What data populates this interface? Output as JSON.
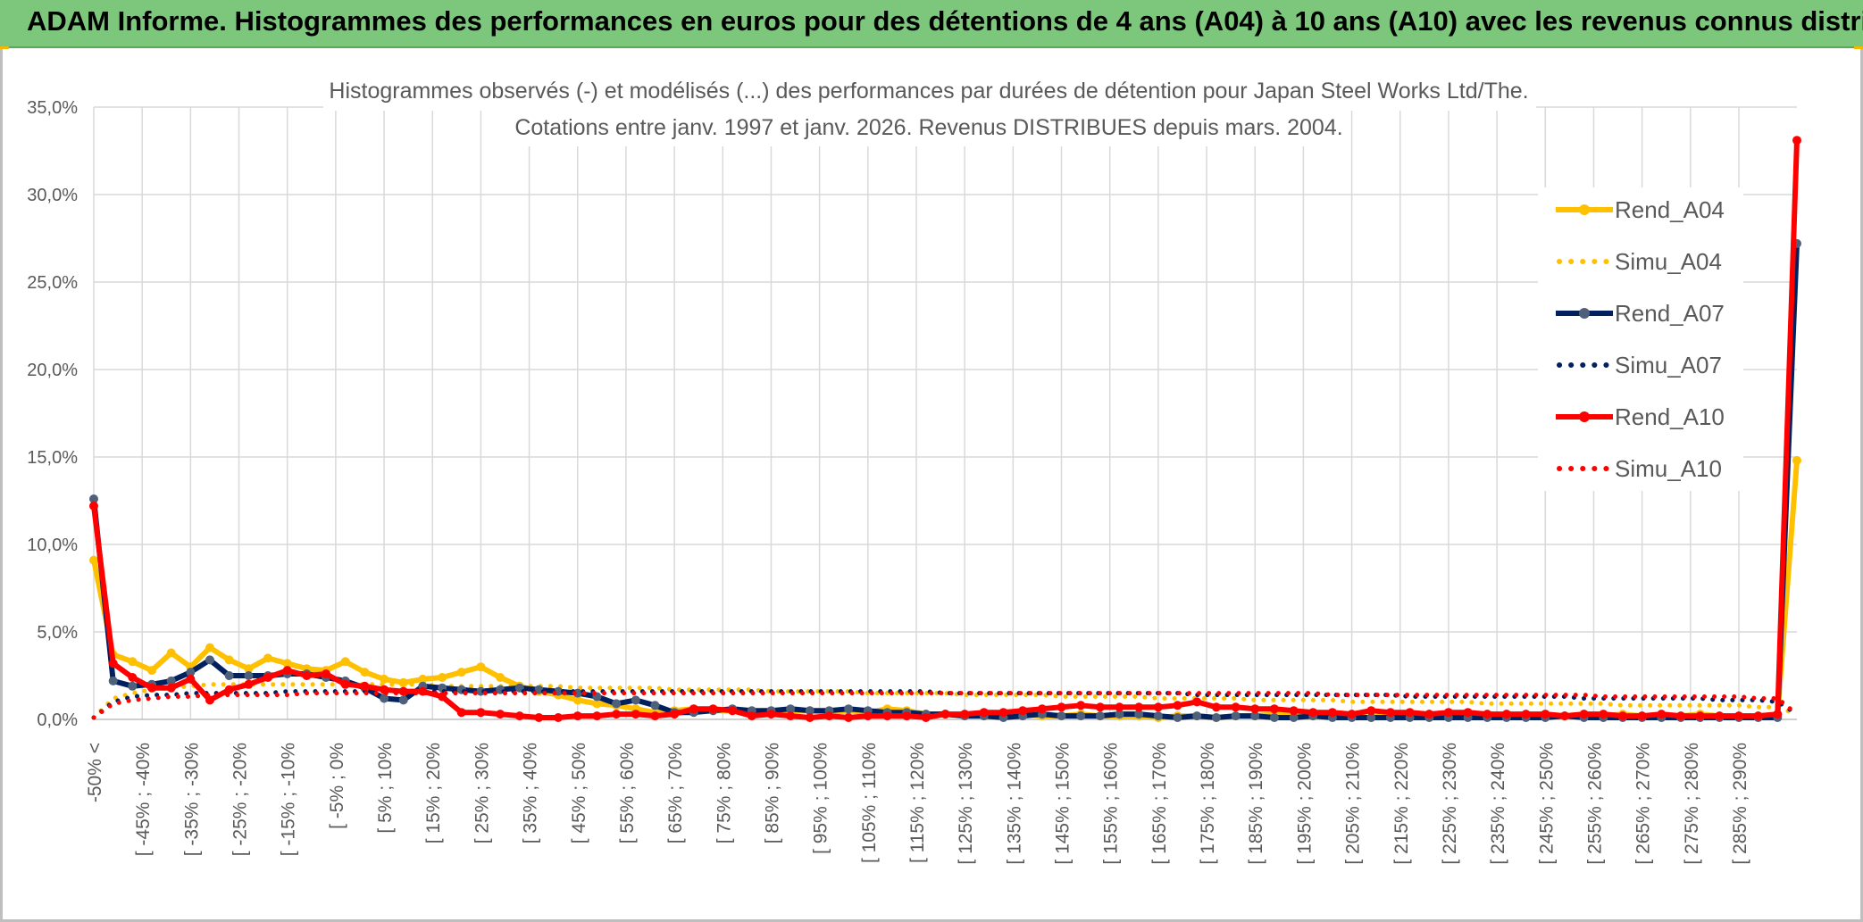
{
  "banner": {
    "title": "ADAM Informe. Histogrammes des performances en euros pour des détentions de 4 ans (A04) à 10 ans (A10) avec les revenus connus distribués"
  },
  "chart_data": {
    "type": "line",
    "title": "Histogrammes observés (-) et modélisés (...) des performances par durées de détention pour Japan Steel Works Ltd/The.",
    "subtitle": "Cotations entre janv. 1997 et janv. 2026.  Revenus DISTRIBUES depuis mars. 2004.",
    "xlabel": "",
    "ylabel": "",
    "ylim": [
      0,
      35
    ],
    "y_ticks": [
      "0,0%",
      "5,0%",
      "10,0%",
      "15,0%",
      "20,0%",
      "25,0%",
      "30,0%",
      "35,0%"
    ],
    "grid": true,
    "legend_position": "right",
    "x_tick_labels": [
      "-50% <",
      "[ -45% ; -40%",
      "[ -35% ; -30%",
      "[ -25% ; -20%",
      "[ -15% ; -10%",
      "[ -5% ; 0%",
      "[ 5% ; 10%",
      "[ 15% ; 20%",
      "[ 25% ; 30%",
      "[ 35% ; 40%",
      "[ 45% ; 50%",
      "[ 55% ; 60%",
      "[ 65% ; 70%",
      "[ 75% ; 80%",
      "[ 85% ; 90%",
      "[ 95% ; 100%",
      "[ 105% ; 110%",
      "[ 115% ; 120%",
      "[ 125% ; 130%",
      "[ 135% ; 140%",
      "[ 145% ; 150%",
      "[ 155% ; 160%",
      "[ 165% ; 170%",
      "[ 175% ; 180%",
      "[ 185% ; 190%",
      "[ 195% ; 200%",
      "[ 205% ; 210%",
      "[ 215% ; 220%",
      "[ 225% ; 230%",
      "[ 235% ; 240%",
      "[ 245% ; 250%",
      "[ 255% ; 260%",
      "[ 265% ; 270%",
      "[ 275% ; 280%",
      "[ 285% ; 290%"
    ],
    "series": [
      {
        "name": "Rend_A04",
        "style": "solid",
        "color": "#ffc000",
        "values": [
          9.1,
          3.7,
          3.3,
          2.8,
          3.8,
          3.0,
          4.1,
          3.4,
          2.9,
          3.5,
          3.2,
          2.9,
          2.8,
          3.3,
          2.7,
          2.3,
          2.1,
          2.3,
          2.4,
          2.7,
          3.0,
          2.4,
          1.9,
          1.6,
          1.4,
          1.1,
          0.9,
          0.8,
          0.6,
          0.4,
          0.5,
          0.6,
          0.5,
          0.5,
          0.4,
          0.4,
          0.5,
          0.5,
          0.4,
          0.5,
          0.4,
          0.6,
          0.5,
          0.3,
          0.3,
          0.2,
          0.3,
          0.2,
          0.3,
          0.2,
          0.2,
          0.3,
          0.2,
          0.2,
          0.2,
          0.1,
          0.2,
          0.2,
          0.1,
          0.2,
          0.2,
          0.3,
          0.2,
          0.2,
          0.3,
          0.2,
          0.1,
          0.3,
          0.2,
          0.3,
          0.2,
          0.3,
          0.2,
          0.3,
          0.2,
          0.3,
          0.2,
          0.3,
          0.2,
          0.3,
          0.2,
          0.2,
          0.2,
          0.3,
          0.2,
          0.2,
          0.2,
          0.2,
          14.8
        ]
      },
      {
        "name": "Simu_A04",
        "style": "dotted",
        "color": "#ffc000",
        "values": [
          0.1,
          1.2,
          1.5,
          1.7,
          1.8,
          1.9,
          2.0,
          2.0,
          2.0,
          2.0,
          2.0,
          2.0,
          2.0,
          2.0,
          2.0,
          2.0,
          2.0,
          2.0,
          1.9,
          1.9,
          1.9,
          1.9,
          1.9,
          1.9,
          1.9,
          1.8,
          1.8,
          1.8,
          1.8,
          1.8,
          1.7,
          1.7,
          1.7,
          1.7,
          1.7,
          1.6,
          1.6,
          1.6,
          1.6,
          1.6,
          1.5,
          1.5,
          1.5,
          1.5,
          1.5,
          1.4,
          1.4,
          1.4,
          1.4,
          1.4,
          1.3,
          1.3,
          1.3,
          1.3,
          1.3,
          1.2,
          1.2,
          1.2,
          1.2,
          1.2,
          1.1,
          1.1,
          1.1,
          1.1,
          1.1,
          1.0,
          1.0,
          1.0,
          1.0,
          1.0,
          1.0,
          1.0,
          0.9,
          0.9,
          0.9,
          0.9,
          0.9,
          0.9,
          0.9,
          0.8,
          0.8,
          0.8,
          0.8,
          0.8,
          0.8,
          0.8,
          0.7,
          0.7,
          0.3
        ]
      },
      {
        "name": "Rend_A07",
        "style": "solid",
        "color": "#002060",
        "values": [
          12.6,
          2.2,
          1.9,
          2.0,
          2.2,
          2.7,
          3.4,
          2.5,
          2.5,
          2.5,
          2.6,
          2.6,
          2.4,
          2.2,
          1.8,
          1.2,
          1.1,
          1.9,
          1.8,
          1.7,
          1.6,
          1.7,
          1.8,
          1.7,
          1.6,
          1.5,
          1.3,
          0.9,
          1.1,
          0.8,
          0.4,
          0.4,
          0.5,
          0.6,
          0.5,
          0.5,
          0.6,
          0.5,
          0.5,
          0.6,
          0.5,
          0.4,
          0.4,
          0.3,
          0.3,
          0.2,
          0.2,
          0.1,
          0.2,
          0.3,
          0.2,
          0.2,
          0.2,
          0.3,
          0.3,
          0.2,
          0.1,
          0.2,
          0.1,
          0.2,
          0.2,
          0.1,
          0.1,
          0.2,
          0.1,
          0.1,
          0.1,
          0.1,
          0.1,
          0.1,
          0.1,
          0.1,
          0.1,
          0.1,
          0.1,
          0.1,
          0.2,
          0.1,
          0.1,
          0.1,
          0.1,
          0.1,
          0.1,
          0.1,
          0.1,
          0.1,
          0.1,
          0.1,
          27.2
        ]
      },
      {
        "name": "Simu_A07",
        "style": "dotted",
        "color": "#002060",
        "values": [
          0.1,
          1.0,
          1.3,
          1.4,
          1.4,
          1.5,
          1.5,
          1.5,
          1.5,
          1.5,
          1.6,
          1.6,
          1.6,
          1.6,
          1.6,
          1.6,
          1.6,
          1.6,
          1.6,
          1.6,
          1.6,
          1.6,
          1.6,
          1.6,
          1.6,
          1.6,
          1.6,
          1.6,
          1.6,
          1.6,
          1.6,
          1.6,
          1.6,
          1.6,
          1.6,
          1.6,
          1.6,
          1.6,
          1.6,
          1.6,
          1.6,
          1.6,
          1.6,
          1.6,
          1.5,
          1.5,
          1.5,
          1.5,
          1.5,
          1.5,
          1.5,
          1.5,
          1.5,
          1.5,
          1.5,
          1.5,
          1.5,
          1.4,
          1.4,
          1.4,
          1.4,
          1.4,
          1.4,
          1.4,
          1.4,
          1.4,
          1.4,
          1.4,
          1.3,
          1.3,
          1.3,
          1.3,
          1.3,
          1.3,
          1.3,
          1.3,
          1.3,
          1.2,
          1.2,
          1.2,
          1.2,
          1.2,
          1.2,
          1.2,
          1.1,
          1.1,
          1.1,
          1.0,
          0.3
        ]
      },
      {
        "name": "Rend_A10",
        "style": "solid",
        "color": "#ff0000",
        "values": [
          12.2,
          3.2,
          2.4,
          1.8,
          1.8,
          2.3,
          1.1,
          1.7,
          2.0,
          2.4,
          2.8,
          2.5,
          2.6,
          2.0,
          1.9,
          1.7,
          1.6,
          1.6,
          1.3,
          0.4,
          0.4,
          0.3,
          0.2,
          0.1,
          0.1,
          0.2,
          0.2,
          0.3,
          0.3,
          0.2,
          0.3,
          0.6,
          0.6,
          0.5,
          0.2,
          0.3,
          0.2,
          0.1,
          0.2,
          0.1,
          0.2,
          0.2,
          0.2,
          0.1,
          0.3,
          0.3,
          0.4,
          0.4,
          0.5,
          0.6,
          0.7,
          0.8,
          0.7,
          0.7,
          0.7,
          0.7,
          0.8,
          1.0,
          0.7,
          0.7,
          0.6,
          0.6,
          0.5,
          0.4,
          0.4,
          0.3,
          0.5,
          0.4,
          0.4,
          0.3,
          0.4,
          0.4,
          0.3,
          0.3,
          0.3,
          0.3,
          0.2,
          0.3,
          0.3,
          0.2,
          0.2,
          0.3,
          0.2,
          0.2,
          0.2,
          0.2,
          0.2,
          0.3,
          33.1
        ]
      },
      {
        "name": "Simu_A10",
        "style": "dotted",
        "color": "#ff0000",
        "values": [
          0.1,
          0.9,
          1.1,
          1.2,
          1.3,
          1.3,
          1.4,
          1.4,
          1.4,
          1.4,
          1.4,
          1.5,
          1.5,
          1.5,
          1.5,
          1.5,
          1.5,
          1.5,
          1.5,
          1.5,
          1.5,
          1.5,
          1.5,
          1.5,
          1.5,
          1.5,
          1.5,
          1.5,
          1.5,
          1.5,
          1.5,
          1.5,
          1.5,
          1.5,
          1.5,
          1.5,
          1.5,
          1.5,
          1.5,
          1.5,
          1.5,
          1.5,
          1.5,
          1.5,
          1.5,
          1.5,
          1.5,
          1.5,
          1.5,
          1.5,
          1.5,
          1.5,
          1.5,
          1.5,
          1.5,
          1.5,
          1.5,
          1.5,
          1.5,
          1.5,
          1.5,
          1.5,
          1.5,
          1.5,
          1.4,
          1.4,
          1.4,
          1.4,
          1.4,
          1.4,
          1.4,
          1.4,
          1.4,
          1.4,
          1.4,
          1.4,
          1.4,
          1.4,
          1.3,
          1.3,
          1.3,
          1.3,
          1.3,
          1.3,
          1.3,
          1.3,
          1.2,
          1.2,
          0.3
        ]
      }
    ]
  }
}
